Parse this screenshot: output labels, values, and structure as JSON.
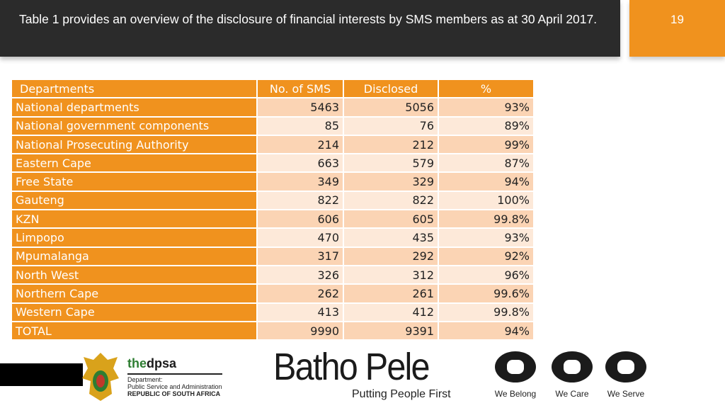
{
  "header": {
    "title": "Table 1 provides an overview of the disclosure of financial interests by SMS members as at 30 April 2017.",
    "slide_number": "19"
  },
  "table": {
    "columns": [
      "Departments",
      "No. of SMS",
      "Disclosed",
      "%"
    ],
    "rows": [
      [
        "National departments",
        "5463",
        "5056",
        "93%"
      ],
      [
        "National government components",
        "85",
        "76",
        "89%"
      ],
      [
        "National Prosecuting Authority",
        "214",
        "212",
        "99%"
      ],
      [
        "Eastern Cape",
        "663",
        "579",
        "87%"
      ],
      [
        "Free State",
        "349",
        "329",
        "94%"
      ],
      [
        "Gauteng",
        "822",
        "822",
        "100%"
      ],
      [
        "KZN",
        "606",
        "605",
        "99.8%"
      ],
      [
        "Limpopo",
        "470",
        "435",
        "93%"
      ],
      [
        "Mpumalanga",
        "317",
        "292",
        "92%"
      ],
      [
        "North West",
        "326",
        "312",
        "96%"
      ],
      [
        "Northern Cape",
        "262",
        "261",
        "99.6%"
      ],
      [
        "Western Cape",
        "413",
        "412",
        "99.8%"
      ],
      [
        "TOTAL",
        "9990",
        "9391",
        "94%"
      ]
    ]
  },
  "footer": {
    "dpsa_the": "the",
    "dpsa_name": "dpsa",
    "dpsa_dept": "Department:",
    "dpsa_line": "Public Service and Administration",
    "dpsa_country": "REPUBLIC OF SOUTH AFRICA",
    "batho_pele": "Batho Pele",
    "tagline": "Putting People First",
    "values": [
      "We Belong",
      "We Care",
      "We Serve"
    ]
  }
}
